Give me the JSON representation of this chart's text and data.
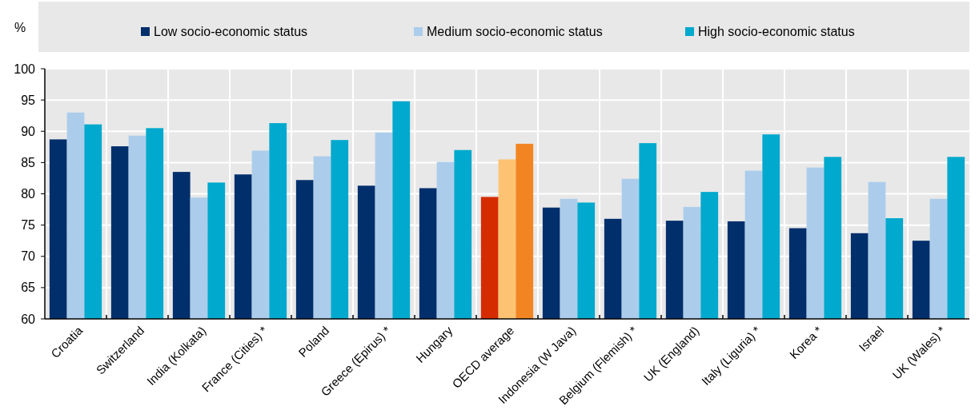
{
  "chart_data": {
    "type": "bar",
    "ylabel": "%",
    "categories": [
      "Croatia",
      "Switzerland",
      "India (Kolkata)",
      "France (Cities) *",
      "Poland",
      "Greece (Epirus) *",
      "Hungary",
      "OECD average",
      "Indonesia (W Java)",
      "Belgium (Flemish) *",
      "UK (England)",
      "Italy (Liguria) *",
      "Korea *",
      "Israel",
      "UK (Wales) *"
    ],
    "series": [
      {
        "name": "Low socio-economic status",
        "color": "#002f6c",
        "colors": [
          "#002f6c",
          "#002f6c",
          "#002f6c",
          "#002f6c",
          "#002f6c",
          "#002f6c",
          "#002f6c",
          "#d52b00",
          "#002f6c",
          "#002f6c",
          "#002f6c",
          "#002f6c",
          "#002f6c",
          "#002f6c",
          "#002f6c"
        ],
        "values": [
          88.7,
          87.6,
          83.5,
          83.1,
          82.2,
          81.3,
          80.9,
          79.5,
          77.8,
          76.0,
          75.7,
          75.6,
          74.5,
          73.7,
          72.5
        ]
      },
      {
        "name": "Medium socio-economic status",
        "color": "#abcdeb",
        "colors": [
          "#abcdeb",
          "#abcdeb",
          "#abcdeb",
          "#abcdeb",
          "#abcdeb",
          "#abcdeb",
          "#abcdeb",
          "#fdc372",
          "#abcdeb",
          "#abcdeb",
          "#abcdeb",
          "#abcdeb",
          "#abcdeb",
          "#abcdeb",
          "#abcdeb"
        ],
        "values": [
          93.0,
          89.3,
          79.4,
          86.9,
          86.0,
          89.8,
          85.1,
          85.5,
          79.2,
          82.4,
          77.9,
          83.7,
          84.2,
          81.9,
          79.2
        ]
      },
      {
        "name": "High socio-economic status",
        "color": "#00a9cd",
        "colors": [
          "#00a9cd",
          "#00a9cd",
          "#00a9cd",
          "#00a9cd",
          "#00a9cd",
          "#00a9cd",
          "#00a9cd",
          "#f28522",
          "#00a9cd",
          "#00a9cd",
          "#00a9cd",
          "#00a9cd",
          "#00a9cd",
          "#00a9cd",
          "#00a9cd"
        ],
        "values": [
          91.1,
          90.5,
          81.8,
          91.3,
          88.6,
          94.8,
          87.0,
          88.0,
          78.6,
          88.1,
          80.3,
          89.5,
          85.9,
          76.1,
          85.9
        ]
      }
    ],
    "ylim": [
      60,
      100
    ],
    "yticks": [
      60,
      65,
      70,
      75,
      80,
      85,
      90,
      95,
      100
    ],
    "grid": true,
    "legend": "top"
  }
}
